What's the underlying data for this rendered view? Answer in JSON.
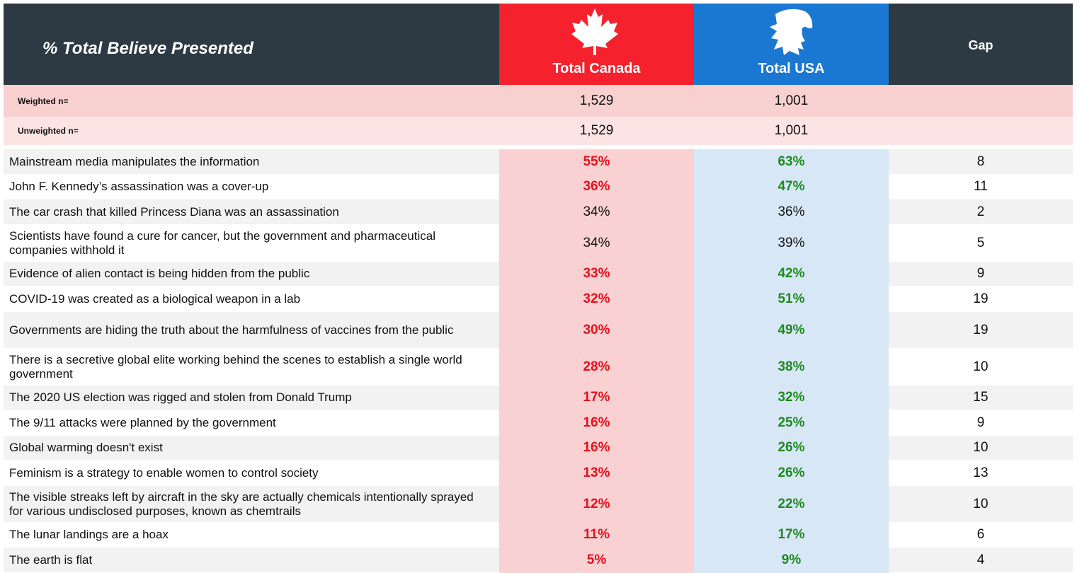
{
  "header": {
    "title": "% Total Believe Presented",
    "columns": [
      "Total Canada",
      "Total USA",
      "Gap"
    ]
  },
  "sample_rows": [
    {
      "label": "Weighted n=",
      "values": [
        "1,529",
        "1,001"
      ]
    },
    {
      "label": "Unweighted n=",
      "values": [
        "1,529",
        "1,001"
      ]
    }
  ],
  "rows": [
    {
      "label": "Mainstream media manipulates the information",
      "canada": "55%",
      "usa": "63%",
      "gap": "8",
      "bold": true
    },
    {
      "label": "John F. Kennedy’s assassination was a cover-up",
      "canada": "36%",
      "usa": "47%",
      "gap": "11",
      "bold": true
    },
    {
      "label": "The car crash that killed Princess Diana was an assassination",
      "canada": "34%",
      "usa": "36%",
      "gap": "2",
      "bold": false
    },
    {
      "label": "Scientists have found a cure for cancer, but the government and pharmaceutical companies withhold it",
      "canada": "34%",
      "usa": "39%",
      "gap": "5",
      "bold": false
    },
    {
      "label": "Evidence of alien contact is being hidden from the public",
      "canada": "33%",
      "usa": "42%",
      "gap": "9",
      "bold": true
    },
    {
      "label": "COVID-19 was created as a biological weapon in a lab",
      "canada": "32%",
      "usa": "51%",
      "gap": "19",
      "bold": true
    },
    {
      "label": "Governments are hiding the truth about the harmfulness of vaccines from the public",
      "canada": "30%",
      "usa": "49%",
      "gap": "19",
      "bold": true
    },
    {
      "label": "There is a secretive global elite working behind the scenes to establish a single world government",
      "canada": "28%",
      "usa": "38%",
      "gap": "10",
      "bold": true
    },
    {
      "label": "The 2020 US election was rigged and stolen from Donald Trump",
      "canada": "17%",
      "usa": "32%",
      "gap": "15",
      "bold": true
    },
    {
      "label": "The 9/11 attacks were planned by the government",
      "canada": "16%",
      "usa": "25%",
      "gap": "9",
      "bold": true
    },
    {
      "label": "Global warming doesn't exist",
      "canada": "16%",
      "usa": "26%",
      "gap": "10",
      "bold": true
    },
    {
      "label": "Feminism is a strategy to enable women to control society",
      "canada": "13%",
      "usa": "26%",
      "gap": "13",
      "bold": true
    },
    {
      "label": "The visible streaks left by aircraft in the sky are actually chemicals intentionally sprayed for various undisclosed purposes, known as chemtrails",
      "canada": "12%",
      "usa": "22%",
      "gap": "10",
      "bold": true
    },
    {
      "label": "The lunar landings are a hoax",
      "canada": "11%",
      "usa": "17%",
      "gap": "6",
      "bold": true
    },
    {
      "label": "The earth is flat",
      "canada": "5%",
      "usa": "9%",
      "gap": "4",
      "bold": true
    }
  ]
}
